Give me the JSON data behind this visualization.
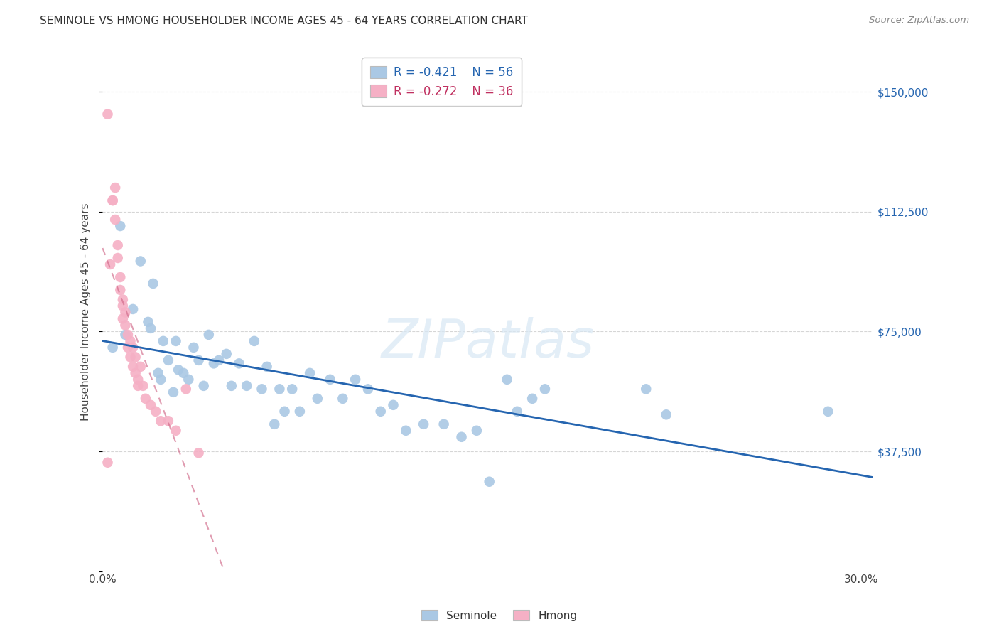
{
  "title": "SEMINOLE VS HMONG HOUSEHOLDER INCOME AGES 45 - 64 YEARS CORRELATION CHART",
  "source": "Source: ZipAtlas.com",
  "ylabel": "Householder Income Ages 45 - 64 years",
  "xlim": [
    0.0,
    0.305
  ],
  "ylim": [
    0,
    162500
  ],
  "xticks": [
    0.0,
    0.05,
    0.1,
    0.15,
    0.2,
    0.25,
    0.3
  ],
  "xticklabels": [
    "0.0%",
    "",
    "",
    "",
    "",
    "",
    "30.0%"
  ],
  "yticks": [
    0,
    37500,
    75000,
    112500,
    150000
  ],
  "yticklabels": [
    "",
    "$37,500",
    "$75,000",
    "$112,500",
    "$150,000"
  ],
  "legend_blue_r": "-0.421",
  "legend_blue_n": "56",
  "legend_pink_r": "-0.272",
  "legend_pink_n": "36",
  "seminole_color": "#aac8e4",
  "hmong_color": "#f5b0c5",
  "trendline_blue_color": "#2565b0",
  "trendline_pink_color": "#d06888",
  "watermark": "ZIPatlas",
  "seminole_x": [
    0.004,
    0.007,
    0.009,
    0.012,
    0.015,
    0.018,
    0.019,
    0.02,
    0.022,
    0.023,
    0.024,
    0.026,
    0.028,
    0.029,
    0.03,
    0.032,
    0.034,
    0.036,
    0.038,
    0.04,
    0.042,
    0.044,
    0.046,
    0.049,
    0.051,
    0.054,
    0.057,
    0.06,
    0.063,
    0.065,
    0.068,
    0.07,
    0.072,
    0.075,
    0.078,
    0.082,
    0.085,
    0.09,
    0.095,
    0.1,
    0.105,
    0.11,
    0.115,
    0.12,
    0.127,
    0.135,
    0.142,
    0.148,
    0.153,
    0.16,
    0.164,
    0.17,
    0.175,
    0.215,
    0.223,
    0.287
  ],
  "seminole_y": [
    70000,
    108000,
    74000,
    82000,
    97000,
    78000,
    76000,
    90000,
    62000,
    60000,
    72000,
    66000,
    56000,
    72000,
    63000,
    62000,
    60000,
    70000,
    66000,
    58000,
    74000,
    65000,
    66000,
    68000,
    58000,
    65000,
    58000,
    72000,
    57000,
    64000,
    46000,
    57000,
    50000,
    57000,
    50000,
    62000,
    54000,
    60000,
    54000,
    60000,
    57000,
    50000,
    52000,
    44000,
    46000,
    46000,
    42000,
    44000,
    28000,
    60000,
    50000,
    54000,
    57000,
    57000,
    49000,
    50000
  ],
  "hmong_x": [
    0.002,
    0.003,
    0.004,
    0.005,
    0.005,
    0.006,
    0.006,
    0.007,
    0.007,
    0.008,
    0.008,
    0.008,
    0.009,
    0.009,
    0.01,
    0.01,
    0.011,
    0.011,
    0.012,
    0.012,
    0.013,
    0.013,
    0.014,
    0.014,
    0.015,
    0.016,
    0.017,
    0.019,
    0.021,
    0.023,
    0.026,
    0.029,
    0.033,
    0.038,
    0.002,
    0.004
  ],
  "hmong_y": [
    143000,
    96000,
    116000,
    120000,
    110000,
    102000,
    98000,
    92000,
    88000,
    85000,
    83000,
    79000,
    81000,
    77000,
    74000,
    70000,
    72000,
    67000,
    70000,
    64000,
    67000,
    62000,
    60000,
    58000,
    64000,
    58000,
    54000,
    52000,
    50000,
    47000,
    47000,
    44000,
    57000,
    37000,
    34000,
    116000
  ]
}
